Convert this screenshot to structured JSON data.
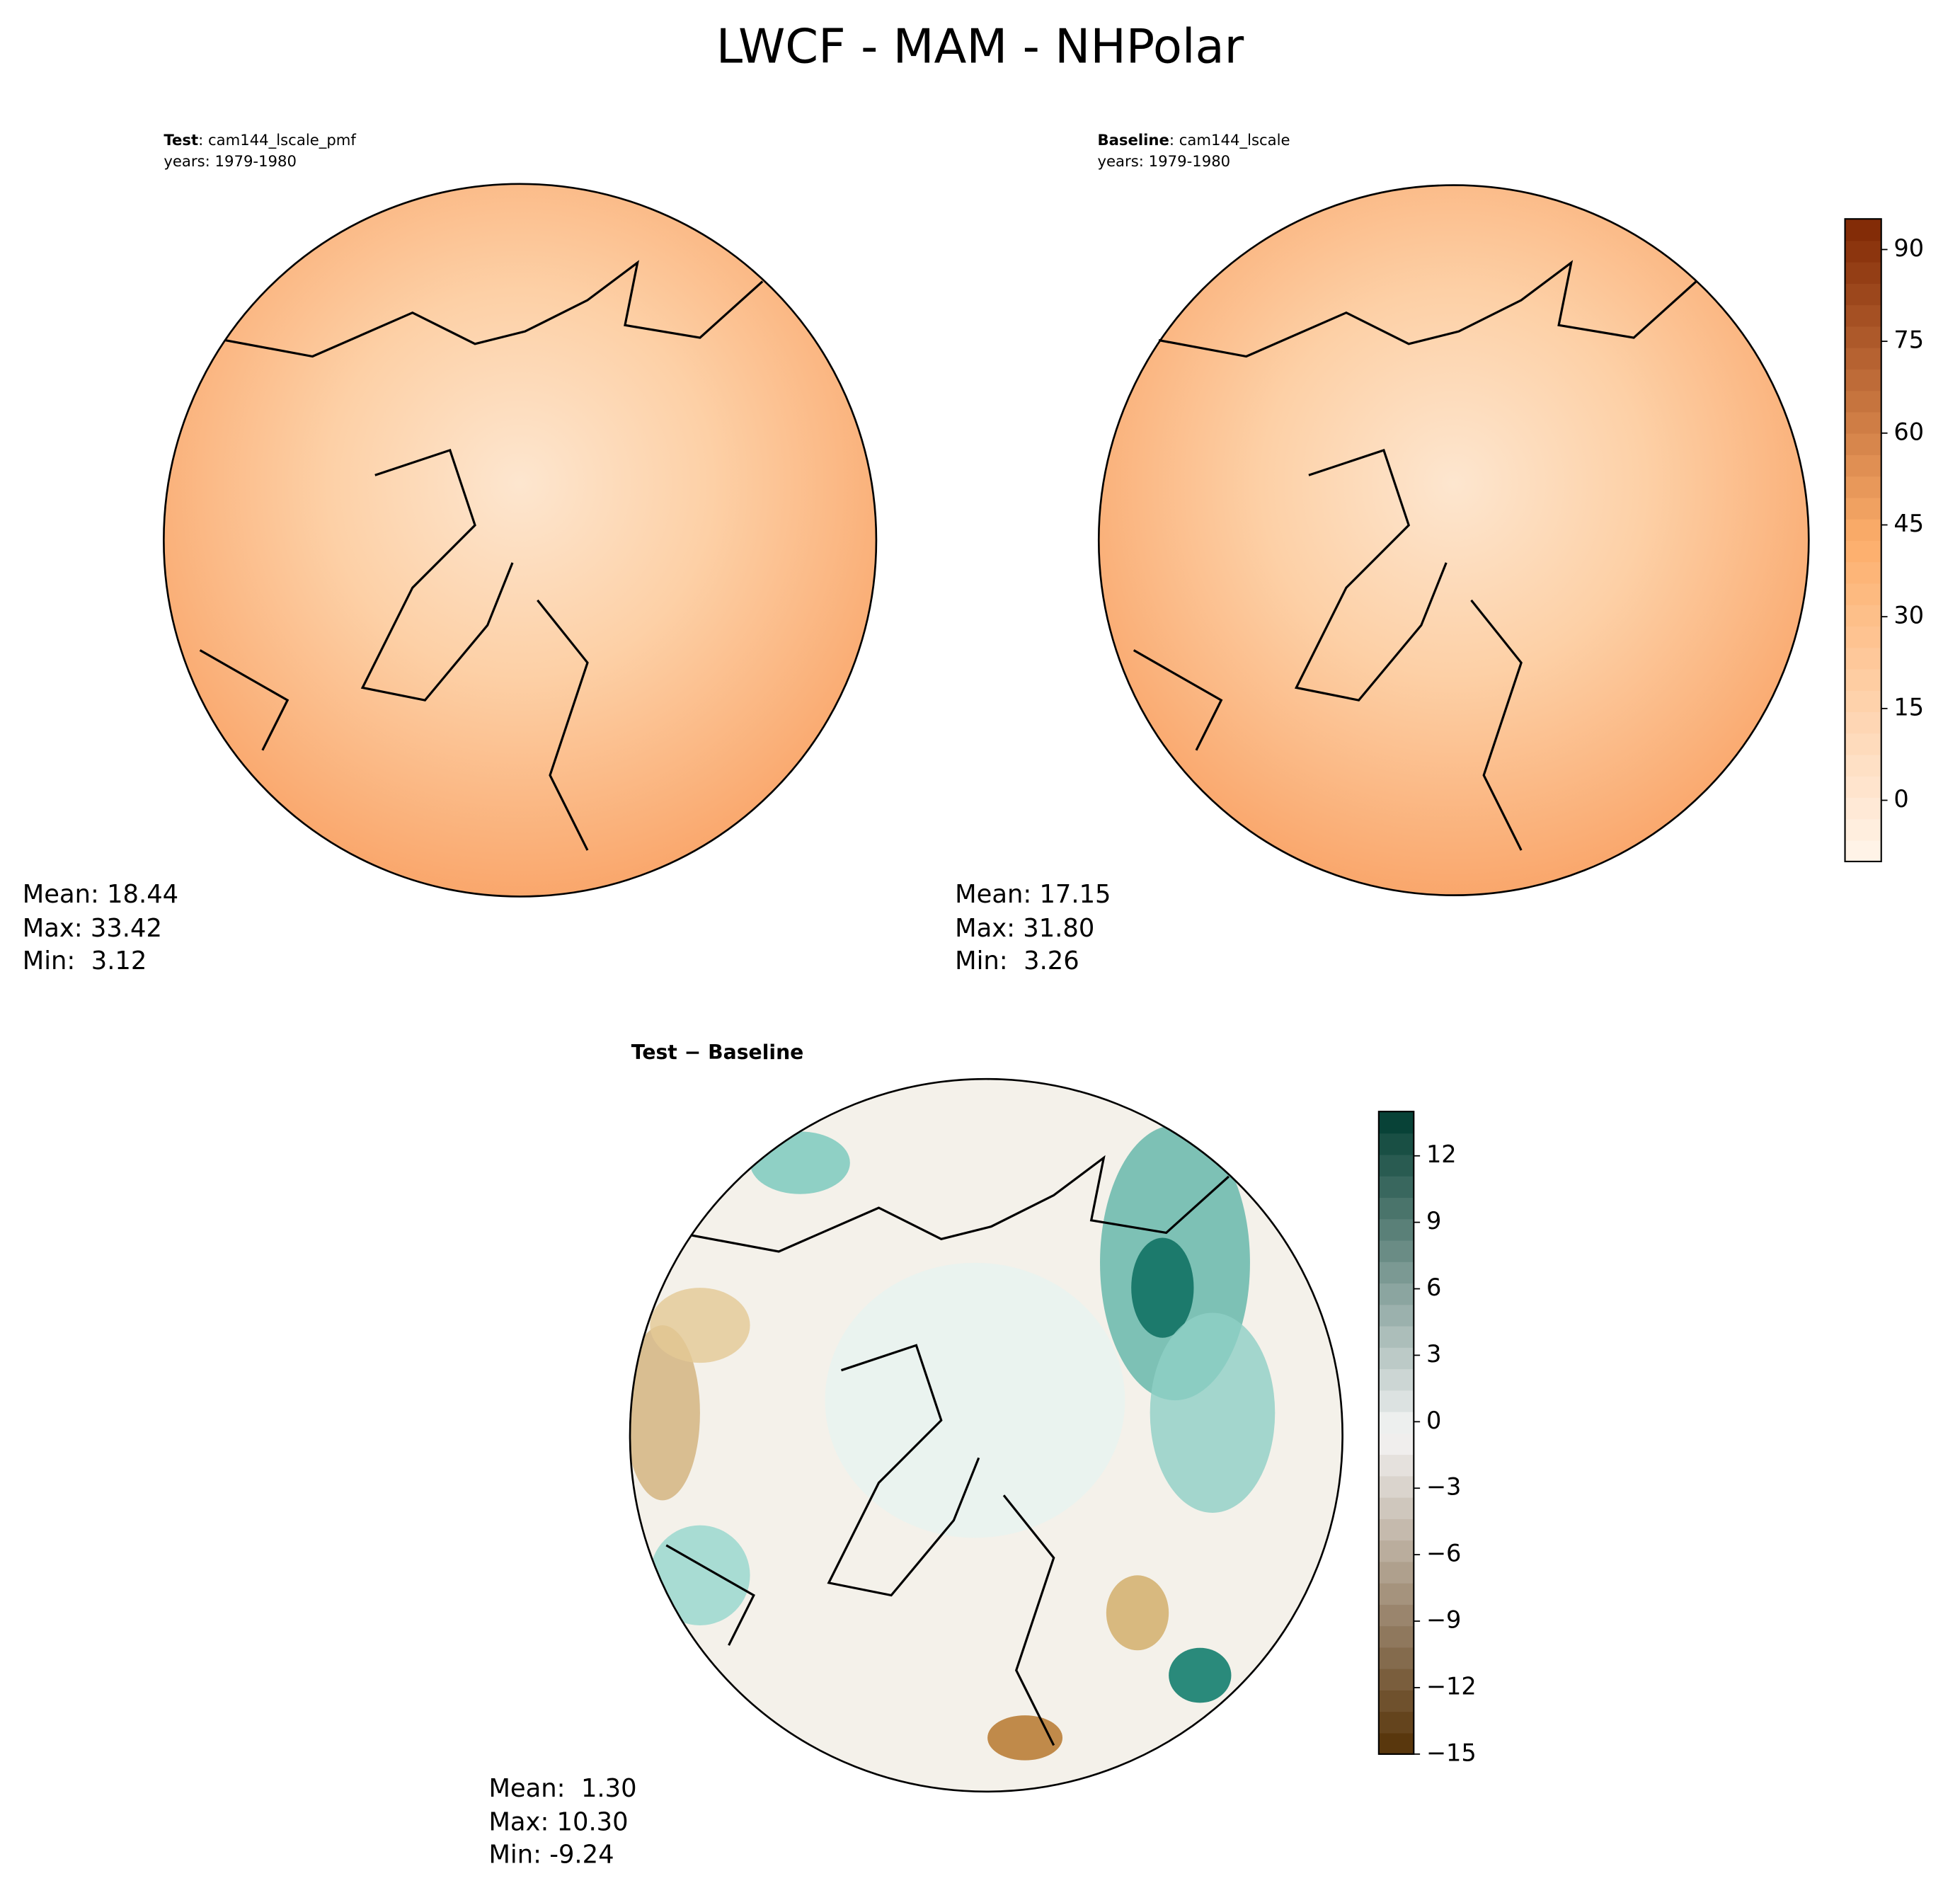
{
  "chart_data": [
    {
      "type": "map",
      "title": "LWCF - MAM - NHPolar",
      "panels": [
        {
          "label": "Test",
          "case": ": cam144_lscale_pmf",
          "years": "years: 1979-1980",
          "stats": [
            "Mean: 18.44",
            "Max: 33.42",
            "Min:  3.12"
          ]
        },
        {
          "label": "Baseline",
          "case": ": cam144_lscale",
          "years": "years: 1979-1980",
          "stats": [
            "Mean: 17.15",
            "Max: 31.80",
            "Min:  3.26"
          ]
        },
        {
          "label": "Test − Baseline",
          "stats": [
            "Mean:  1.30",
            "Max: 10.30",
            "Min: -9.24"
          ]
        }
      ]
    },
    {
      "type": "colorbar",
      "colors": [
        "#fff5eb",
        "#fdae6b",
        "#7f2704"
      ],
      "ylim": [
        -10,
        95
      ],
      "yticks": [
        0,
        15,
        30,
        45,
        60,
        75,
        90
      ]
    },
    {
      "type": "colorbar",
      "colors": [
        "#543005",
        "#f5f5f5",
        "#003c30"
      ],
      "ylim": [
        -15,
        14
      ],
      "yticks": [
        {
          "value": -15,
          "label": "−15"
        },
        {
          "value": -12,
          "label": "−12"
        },
        {
          "value": -9,
          "label": "−9"
        },
        {
          "value": -6,
          "label": "−6"
        },
        {
          "value": -3,
          "label": "−3"
        },
        0,
        3,
        6,
        9,
        12
      ]
    }
  ]
}
